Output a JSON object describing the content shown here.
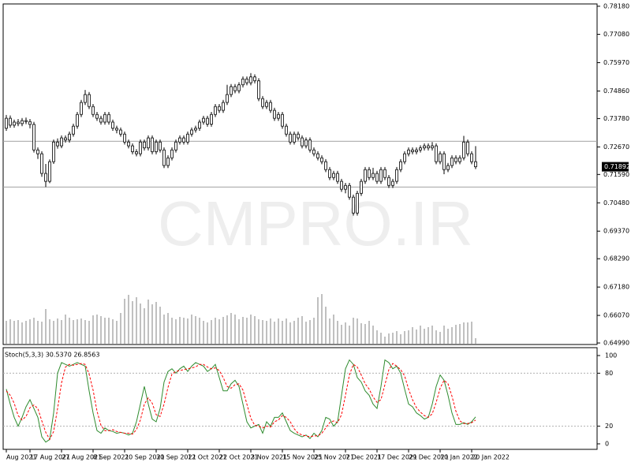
{
  "chart_data": [
    {
      "type": "candlestick",
      "watermark": "CMPRO.IR",
      "current_price": 0.71892,
      "x_labels": [
        {
          "value": 0,
          "label": "Aug 2021"
        },
        {
          "value": 6,
          "label": "17 Aug 2021"
        },
        {
          "value": 14,
          "label": "27 Aug 2021"
        },
        {
          "value": 22,
          "label": "8 Sep 2021"
        },
        {
          "value": 30,
          "label": "20 Sep 2021"
        },
        {
          "value": 38,
          "label": "30 Sep 2021"
        },
        {
          "value": 46,
          "label": "12 Oct 2021"
        },
        {
          "value": 54,
          "label": "22 Oct 2021"
        },
        {
          "value": 62,
          "label": "3 Nov 2021"
        },
        {
          "value": 70,
          "label": "15 Nov 2021"
        },
        {
          "value": 78,
          "label": "25 Nov 2021"
        },
        {
          "value": 86,
          "label": "7 Dec 2021"
        },
        {
          "value": 94,
          "label": "17 Dec 2021"
        },
        {
          "value": 102,
          "label": "29 Dec 2021"
        },
        {
          "value": 110,
          "label": "10 Jan 2022"
        },
        {
          "value": 118,
          "label": "20 Jan 2022"
        }
      ],
      "ylim": [
        0.6493,
        0.7827
      ],
      "yticks": [
        {
          "value": 0.7818,
          "label": "0.78180"
        },
        {
          "value": 0.7708,
          "label": "0.77080"
        },
        {
          "value": 0.7597,
          "label": "0.75970"
        },
        {
          "value": 0.7486,
          "label": "0.74860"
        },
        {
          "value": 0.7378,
          "label": "0.73780"
        },
        {
          "value": 0.7267,
          "label": "0.72670"
        },
        {
          "value": 0.7159,
          "label": "0.71590"
        },
        {
          "value": 0.7048,
          "label": "0.70480"
        },
        {
          "value": 0.6937,
          "label": "0.69370"
        },
        {
          "value": 0.6829,
          "label": "0.68290"
        },
        {
          "value": 0.6718,
          "label": "0.67180"
        },
        {
          "value": 0.6607,
          "label": "0.66070"
        },
        {
          "value": 0.6499,
          "label": "0.64990"
        }
      ],
      "hlines": [
        0.7289,
        0.711
      ],
      "color": "#ffffff",
      "line_color": "#000000",
      "volume_color": "#808080",
      "open": [
        0.734,
        0.7379,
        0.7352,
        0.7364,
        0.7358,
        0.737,
        0.7366,
        0.7355,
        0.7255,
        0.724,
        0.7163,
        0.7132,
        0.7209,
        0.7286,
        0.7271,
        0.7302,
        0.7294,
        0.7317,
        0.7348,
        0.7394,
        0.7441,
        0.7472,
        0.7425,
        0.7394,
        0.7379,
        0.7364,
        0.7394,
        0.7364,
        0.734,
        0.7333,
        0.7317,
        0.7286,
        0.7271,
        0.7248,
        0.724,
        0.7286,
        0.7263,
        0.7302,
        0.7248,
        0.7286,
        0.7255,
        0.7194,
        0.7224,
        0.7255,
        0.7286,
        0.7302,
        0.7286,
        0.7317,
        0.7333,
        0.734,
        0.7364,
        0.7379,
        0.7356,
        0.7394,
        0.7425,
        0.741,
        0.7441,
        0.7472,
        0.7503,
        0.7487,
        0.751,
        0.7533,
        0.7518,
        0.7541,
        0.7526,
        0.7456,
        0.7425,
        0.7441,
        0.741,
        0.7379,
        0.7394,
        0.7348,
        0.7317,
        0.7286,
        0.7317,
        0.7302,
        0.7271,
        0.7294,
        0.7255,
        0.724,
        0.7224,
        0.7209,
        0.7178,
        0.7147,
        0.7163,
        0.7132,
        0.7101,
        0.7116,
        0.707,
        0.7008,
        0.7085,
        0.7132,
        0.7178,
        0.7147,
        0.7163,
        0.7132,
        0.7178,
        0.7147,
        0.7116,
        0.7132,
        0.7178,
        0.7209,
        0.724,
        0.7255,
        0.7248,
        0.7255,
        0.7263,
        0.7271,
        0.7263,
        0.7271,
        0.7209,
        0.724,
        0.7178,
        0.7194,
        0.7224,
        0.7209,
        0.7224,
        0.7286,
        0.724,
        0.7209
      ],
      "high": [
        0.7392,
        0.739,
        0.7374,
        0.7376,
        0.738,
        0.7382,
        0.7376,
        0.7365,
        0.7265,
        0.725,
        0.72,
        0.7218,
        0.7296,
        0.73,
        0.7312,
        0.7312,
        0.7327,
        0.7358,
        0.7404,
        0.7451,
        0.749,
        0.7482,
        0.7435,
        0.7404,
        0.7389,
        0.7404,
        0.7404,
        0.7374,
        0.735,
        0.7343,
        0.7327,
        0.7296,
        0.7281,
        0.7258,
        0.7296,
        0.7296,
        0.7312,
        0.7312,
        0.7296,
        0.7296,
        0.7265,
        0.7234,
        0.7265,
        0.7296,
        0.7312,
        0.7312,
        0.7327,
        0.7343,
        0.735,
        0.7374,
        0.7389,
        0.7389,
        0.7404,
        0.7435,
        0.7435,
        0.7451,
        0.751,
        0.7513,
        0.7513,
        0.752,
        0.7543,
        0.7543,
        0.7556,
        0.7551,
        0.7536,
        0.7466,
        0.7451,
        0.7451,
        0.742,
        0.7404,
        0.7404,
        0.7358,
        0.7327,
        0.7327,
        0.7327,
        0.7312,
        0.7304,
        0.7304,
        0.7265,
        0.725,
        0.7234,
        0.7219,
        0.7188,
        0.7173,
        0.7173,
        0.7142,
        0.7126,
        0.7126,
        0.708,
        0.7095,
        0.7142,
        0.7188,
        0.7188,
        0.7185,
        0.7173,
        0.7188,
        0.7188,
        0.7157,
        0.7142,
        0.7188,
        0.7219,
        0.725,
        0.7265,
        0.7265,
        0.7265,
        0.7273,
        0.7281,
        0.7281,
        0.7286,
        0.7281,
        0.725,
        0.725,
        0.7204,
        0.7234,
        0.7234,
        0.7234,
        0.731,
        0.7296,
        0.725,
        0.727
      ],
      "low": [
        0.733,
        0.7342,
        0.7342,
        0.7348,
        0.7348,
        0.7356,
        0.734,
        0.7245,
        0.722,
        0.715,
        0.711,
        0.7125,
        0.72,
        0.726,
        0.7262,
        0.7284,
        0.7284,
        0.7307,
        0.7338,
        0.7384,
        0.7431,
        0.7415,
        0.7384,
        0.7369,
        0.7354,
        0.7354,
        0.7354,
        0.733,
        0.732,
        0.7307,
        0.7276,
        0.7261,
        0.7238,
        0.723,
        0.723,
        0.7253,
        0.7253,
        0.7238,
        0.7238,
        0.7245,
        0.7184,
        0.7184,
        0.7214,
        0.7245,
        0.7276,
        0.7276,
        0.7276,
        0.7307,
        0.7323,
        0.733,
        0.7354,
        0.7346,
        0.7346,
        0.7384,
        0.74,
        0.74,
        0.7431,
        0.7462,
        0.7477,
        0.7477,
        0.75,
        0.7508,
        0.7508,
        0.7516,
        0.7446,
        0.7415,
        0.7415,
        0.74,
        0.7369,
        0.7369,
        0.7338,
        0.7307,
        0.7276,
        0.7276,
        0.7292,
        0.7261,
        0.7261,
        0.7245,
        0.723,
        0.7214,
        0.7199,
        0.7168,
        0.7137,
        0.7137,
        0.7122,
        0.7091,
        0.7085,
        0.706,
        0.6998,
        0.6998,
        0.7075,
        0.7122,
        0.7137,
        0.7137,
        0.7122,
        0.7122,
        0.7137,
        0.7106,
        0.7106,
        0.7122,
        0.7168,
        0.7199,
        0.723,
        0.7238,
        0.7238,
        0.7245,
        0.7253,
        0.7253,
        0.7253,
        0.7199,
        0.7199,
        0.716,
        0.7168,
        0.7184,
        0.7199,
        0.7199,
        0.7214,
        0.723,
        0.7199,
        0.718
      ],
      "close": [
        0.7379,
        0.7352,
        0.7364,
        0.7358,
        0.737,
        0.7366,
        0.7355,
        0.7255,
        0.724,
        0.7163,
        0.7132,
        0.7209,
        0.7286,
        0.7271,
        0.7302,
        0.7294,
        0.7317,
        0.7348,
        0.7394,
        0.7441,
        0.7472,
        0.7425,
        0.7394,
        0.7379,
        0.7364,
        0.7394,
        0.7364,
        0.734,
        0.7333,
        0.7317,
        0.7286,
        0.7271,
        0.7248,
        0.724,
        0.7286,
        0.7263,
        0.7302,
        0.7248,
        0.7286,
        0.7255,
        0.7194,
        0.7224,
        0.7255,
        0.7286,
        0.7302,
        0.7286,
        0.7317,
        0.7333,
        0.734,
        0.7364,
        0.7379,
        0.7356,
        0.7394,
        0.7425,
        0.741,
        0.7441,
        0.7472,
        0.7503,
        0.7487,
        0.751,
        0.7533,
        0.7518,
        0.7541,
        0.7526,
        0.7456,
        0.7425,
        0.7441,
        0.741,
        0.7379,
        0.7394,
        0.7348,
        0.7317,
        0.7286,
        0.7317,
        0.7302,
        0.7271,
        0.7294,
        0.7255,
        0.724,
        0.7224,
        0.7209,
        0.7178,
        0.7147,
        0.7163,
        0.7132,
        0.7101,
        0.7116,
        0.707,
        0.7008,
        0.7085,
        0.7132,
        0.7178,
        0.7147,
        0.7163,
        0.7132,
        0.7178,
        0.7147,
        0.7116,
        0.7132,
        0.7178,
        0.7209,
        0.724,
        0.7255,
        0.7248,
        0.7255,
        0.7263,
        0.7271,
        0.7263,
        0.7271,
        0.7209,
        0.724,
        0.7178,
        0.7194,
        0.7224,
        0.7209,
        0.7224,
        0.7286,
        0.724,
        0.7209,
        0.71892
      ],
      "volume": [
        30,
        32,
        30,
        31,
        28,
        30,
        32,
        34,
        30,
        29,
        45,
        32,
        30,
        33,
        31,
        38,
        34,
        31,
        32,
        33,
        31,
        30,
        37,
        38,
        36,
        34,
        34,
        32,
        30,
        40,
        58,
        63,
        55,
        60,
        52,
        46,
        57,
        51,
        54,
        48,
        38,
        40,
        34,
        32,
        35,
        34,
        33,
        38,
        36,
        34,
        30,
        28,
        31,
        34,
        32,
        35,
        37,
        40,
        38,
        32,
        35,
        34,
        38,
        36,
        32,
        31,
        30,
        33,
        29,
        33,
        30,
        33,
        28,
        30,
        34,
        36,
        29,
        31,
        34,
        60,
        64,
        48,
        33,
        38,
        30,
        25,
        28,
        24,
        34,
        33,
        27,
        26,
        30,
        24,
        18,
        15,
        10,
        14,
        15,
        17,
        13,
        17,
        18,
        22,
        19,
        24,
        20,
        22,
        24,
        18,
        16,
        24,
        20,
        22,
        25,
        26,
        28,
        28,
        29,
        8
      ]
    },
    {
      "type": "line",
      "title": "Stoch(5,3,3) 30.5370 26.8563",
      "ylim": [
        -6.25,
        108.93
      ],
      "yticks": [
        100,
        80,
        20,
        0
      ],
      "levels": [
        80,
        20
      ],
      "series": [
        {
          "color": "#2e8b2e",
          "dash": false,
          "values": [
            62,
            45,
            30,
            20,
            30,
            42,
            50,
            40,
            30,
            8,
            2,
            5,
            35,
            80,
            92,
            90,
            88,
            90,
            92,
            90,
            88,
            60,
            35,
            15,
            12,
            18,
            15,
            14,
            12,
            13,
            12,
            10,
            12,
            25,
            45,
            65,
            45,
            28,
            25,
            40,
            70,
            82,
            85,
            80,
            85,
            88,
            82,
            88,
            92,
            90,
            88,
            82,
            85,
            90,
            75,
            60,
            60,
            68,
            72,
            65,
            45,
            25,
            18,
            20,
            22,
            12,
            25,
            20,
            30,
            30,
            35,
            25,
            15,
            12,
            10,
            8,
            10,
            6,
            12,
            8,
            15,
            30,
            28,
            20,
            25,
            55,
            85,
            95,
            90,
            75,
            70,
            60,
            55,
            45,
            40,
            65,
            95,
            92,
            85,
            88,
            80,
            62,
            45,
            42,
            35,
            32,
            28,
            30,
            45,
            65,
            78,
            72,
            55,
            35,
            22,
            22,
            24,
            22,
            25,
            30.537
          ]
        },
        {
          "color": "#ff0000",
          "dash": true,
          "values": [
            60,
            55,
            46,
            32,
            27,
            31,
            41,
            44,
            40,
            26,
            13,
            5,
            14,
            40,
            69,
            87,
            90,
            89,
            90,
            91,
            90,
            79,
            61,
            37,
            21,
            15,
            15,
            16,
            14,
            13,
            12,
            12,
            11,
            16,
            27,
            45,
            52,
            46,
            33,
            31,
            45,
            64,
            79,
            82,
            83,
            84,
            85,
            86,
            87,
            90,
            90,
            87,
            85,
            86,
            83,
            75,
            65,
            63,
            67,
            68,
            61,
            45,
            29,
            21,
            20,
            18,
            20,
            19,
            25,
            27,
            32,
            30,
            25,
            17,
            12,
            10,
            9,
            8,
            9,
            9,
            12,
            18,
            24,
            26,
            24,
            33,
            55,
            78,
            90,
            87,
            78,
            68,
            62,
            53,
            47,
            50,
            67,
            84,
            91,
            88,
            84,
            77,
            62,
            50,
            41,
            36,
            32,
            30,
            34,
            47,
            63,
            72,
            68,
            54,
            37,
            26,
            23,
            23,
            24,
            26.8563
          ]
        }
      ]
    }
  ]
}
